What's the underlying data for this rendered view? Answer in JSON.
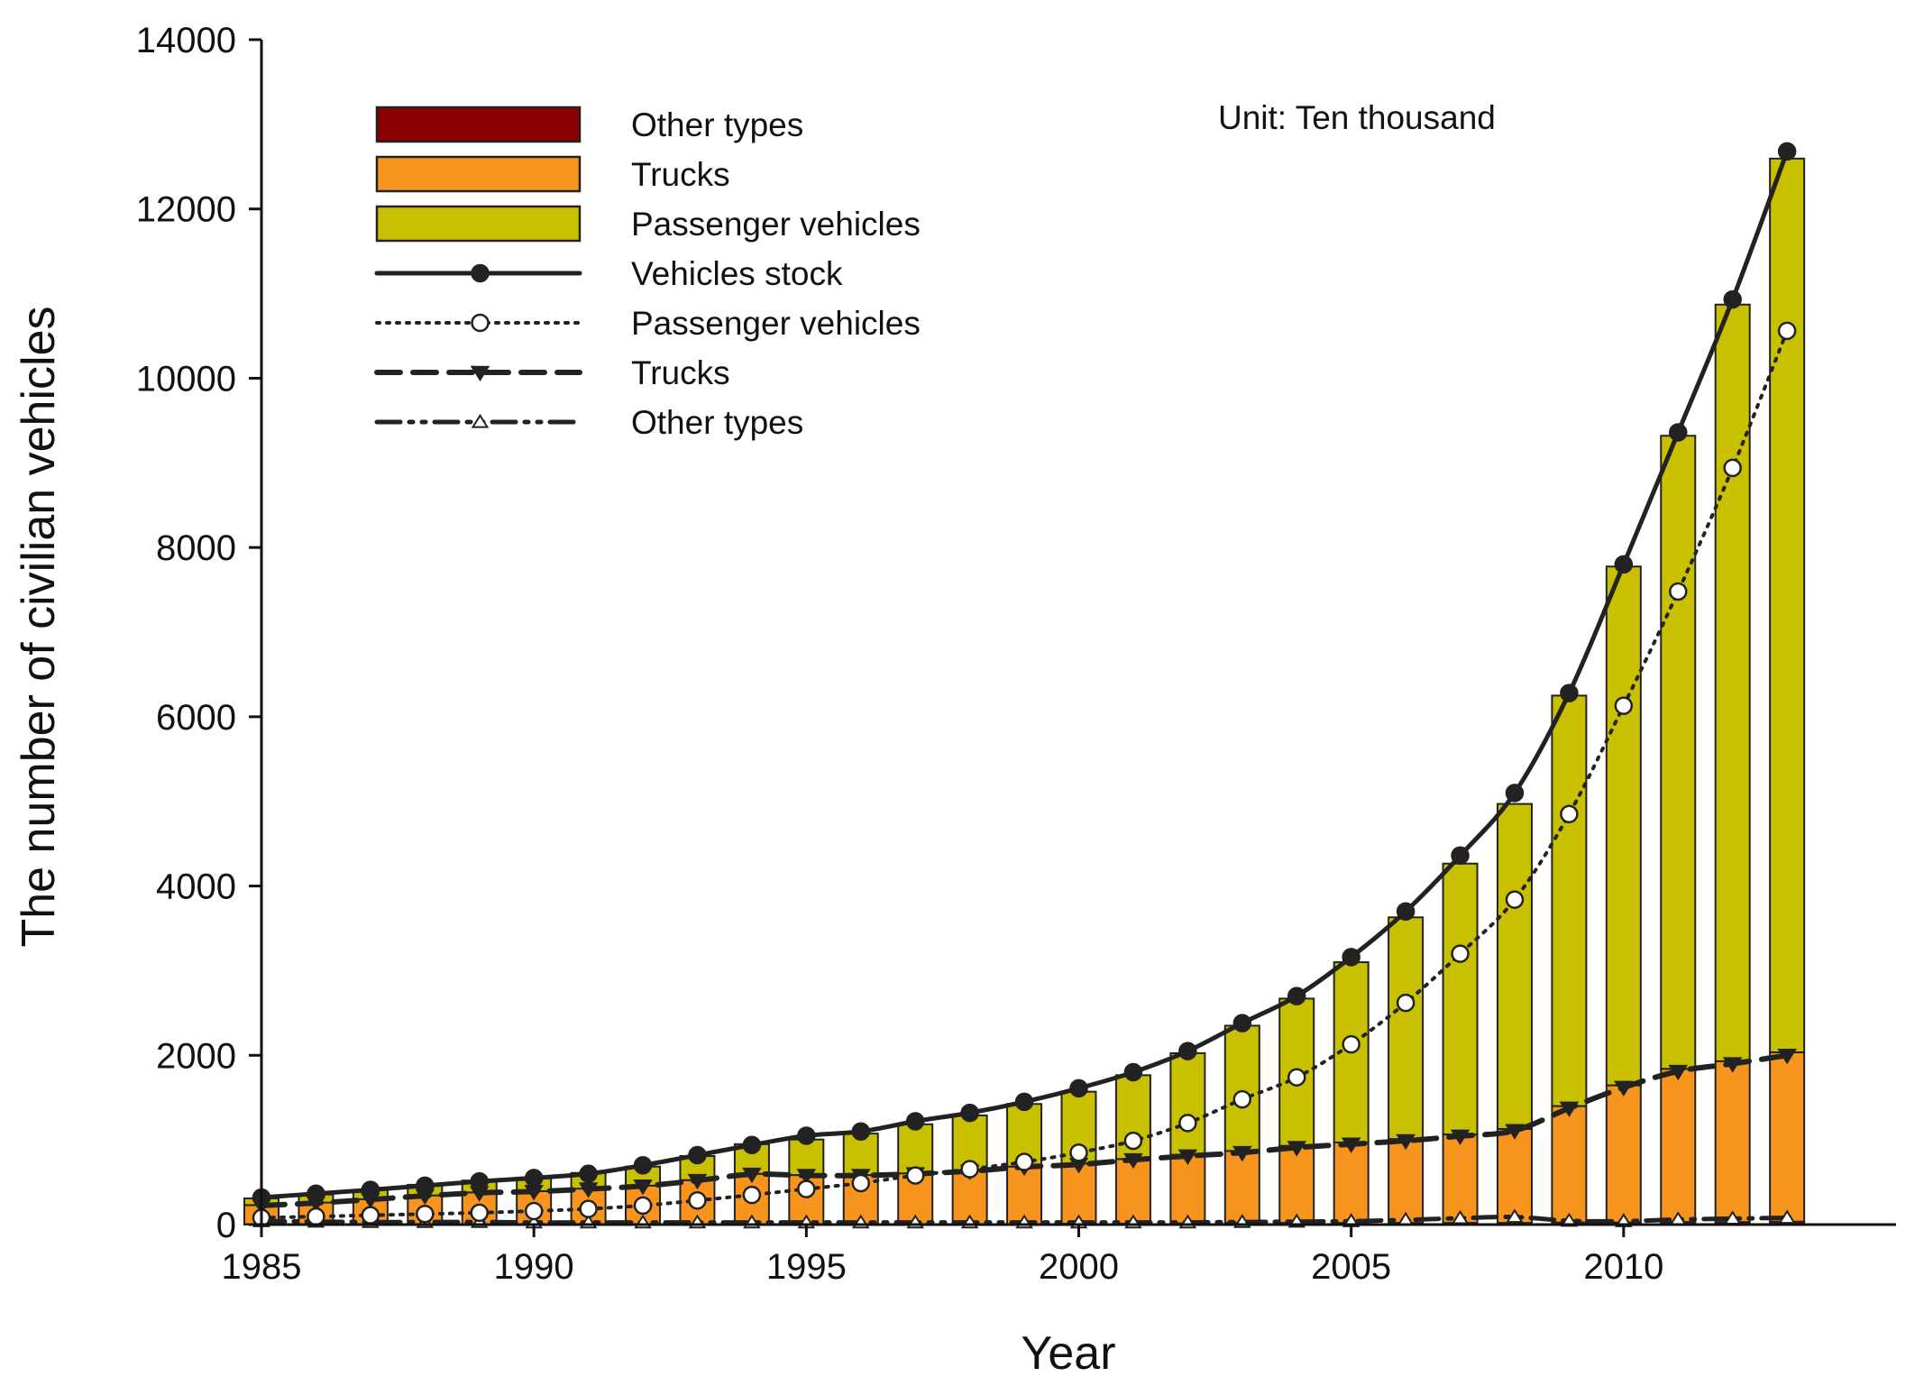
{
  "chart_data": {
    "type": "bar",
    "subtype": "stacked-bar-with-lines",
    "x": [
      1985,
      1986,
      1987,
      1988,
      1989,
      1990,
      1991,
      1992,
      1993,
      1994,
      1995,
      1996,
      1997,
      1998,
      1999,
      2000,
      2001,
      2002,
      2003,
      2004,
      2005,
      2006,
      2007,
      2008,
      2009,
      2010,
      2011,
      2012,
      2013
    ],
    "xlabel": "Year",
    "ylabel": "The number of civilian vehicles",
    "ylim": [
      0,
      14000
    ],
    "xlim": [
      1985,
      2015
    ],
    "yticks": [
      0,
      2000,
      4000,
      6000,
      8000,
      10000,
      12000,
      14000
    ],
    "xticks": [
      1985,
      1990,
      1995,
      2000,
      2005,
      2010
    ],
    "annotation": "Unit: Ten thousand",
    "grid": false,
    "legend_position": "top-left",
    "bar_series": [
      {
        "name": "Passenger vehicles",
        "color": "#c9c000",
        "values": [
          80,
          95,
          110,
          125,
          140,
          160,
          185,
          225,
          285,
          350,
          420,
          490,
          580,
          655,
          740,
          850,
          990,
          1200,
          1480,
          1740,
          2130,
          2620,
          3200,
          3840,
          4850,
          6130,
          7480,
          8940,
          10560
        ]
      },
      {
        "name": "Trucks",
        "color": "#f7941d",
        "values": [
          225,
          255,
          295,
          340,
          375,
          390,
          420,
          455,
          520,
          595,
          580,
          580,
          600,
          630,
          680,
          710,
          765,
          810,
          850,
          910,
          950,
          990,
          1045,
          1110,
          1375,
          1620,
          1810,
          1900,
          2000
        ]
      },
      {
        "name": "Other types",
        "color": "#8b0000",
        "values": [
          5,
          5,
          5,
          5,
          5,
          5,
          5,
          5,
          5,
          5,
          5,
          5,
          5,
          5,
          5,
          10,
          10,
          15,
          20,
          20,
          20,
          20,
          20,
          20,
          25,
          25,
          30,
          30,
          35
        ]
      }
    ],
    "line_series": [
      {
        "name": "Vehicles stock",
        "style": "solid-filled-circle",
        "values": [
          320,
          365,
          410,
          460,
          510,
          550,
          600,
          700,
          820,
          940,
          1050,
          1100,
          1220,
          1320,
          1450,
          1610,
          1800,
          2050,
          2380,
          2700,
          3160,
          3700,
          4360,
          5100,
          6280,
          7800,
          9360,
          10930,
          12680
        ]
      },
      {
        "name": "Passenger vehicles",
        "style": "dotted-open-circle",
        "values": [
          80,
          95,
          110,
          125,
          140,
          160,
          185,
          225,
          285,
          350,
          420,
          490,
          580,
          655,
          740,
          850,
          990,
          1200,
          1480,
          1740,
          2130,
          2620,
          3200,
          3840,
          4850,
          6130,
          7480,
          8940,
          10560
        ]
      },
      {
        "name": "Trucks",
        "style": "dashed-filled-triangle-down",
        "values": [
          225,
          255,
          295,
          340,
          375,
          390,
          420,
          455,
          520,
          595,
          580,
          580,
          600,
          630,
          680,
          710,
          765,
          810,
          850,
          910,
          950,
          990,
          1045,
          1110,
          1375,
          1620,
          1810,
          1900,
          2000
        ]
      },
      {
        "name": "Other types",
        "style": "dashdotdot-open-triangle-up",
        "values": [
          40,
          35,
          30,
          30,
          30,
          25,
          25,
          25,
          25,
          25,
          25,
          25,
          25,
          25,
          25,
          25,
          25,
          25,
          30,
          35,
          40,
          55,
          75,
          90,
          45,
          40,
          60,
          70,
          80
        ]
      }
    ],
    "legend": [
      {
        "label": "Other types",
        "kind": "bar",
        "color": "#8b0000"
      },
      {
        "label": "Trucks",
        "kind": "bar",
        "color": "#f7941d"
      },
      {
        "label": "Passenger vehicles",
        "kind": "bar",
        "color": "#c9c000"
      },
      {
        "label": "Vehicles stock",
        "kind": "line",
        "style": "solid-filled-circle"
      },
      {
        "label": "Passenger vehicles",
        "kind": "line",
        "style": "dotted-open-circle"
      },
      {
        "label": "Trucks",
        "kind": "line",
        "style": "dashed-filled-triangle-down"
      },
      {
        "label": "Other types",
        "kind": "line",
        "style": "dashdotdot-open-triangle-up"
      }
    ]
  }
}
